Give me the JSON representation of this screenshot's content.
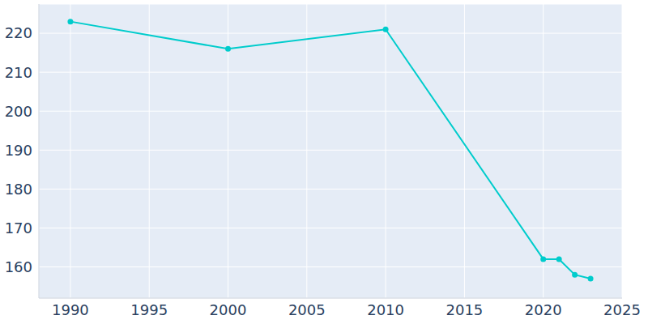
{
  "chart_data": {
    "type": "line",
    "x": [
      1990,
      2000,
      2010,
      2020,
      2021,
      2022,
      2023
    ],
    "values": [
      223,
      216,
      221,
      162,
      162,
      158,
      157
    ],
    "color": "#00cccc",
    "marker": "circle",
    "xlim": [
      1988,
      2025
    ],
    "xticks": [
      1990,
      1995,
      2000,
      2005,
      2010,
      2015,
      2020,
      2025
    ],
    "ylim": [
      152,
      227.5
    ],
    "yticks": [
      160,
      170,
      180,
      190,
      200,
      210,
      220
    ],
    "grid": true
  }
}
